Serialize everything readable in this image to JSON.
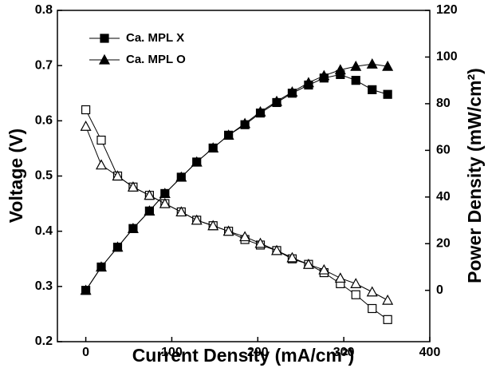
{
  "chart_data": {
    "type": "line",
    "x_label": "Current Density (mA/cm²)",
    "y_label": "Voltage (V)",
    "y2_label": "Power Density (mW/cm²)",
    "x": [
      0,
      18,
      37,
      55,
      74,
      92,
      111,
      129,
      148,
      166,
      185,
      203,
      222,
      240,
      259,
      277,
      296,
      314,
      333,
      351
    ],
    "xlim": [
      -33,
      400
    ],
    "xticks": [
      0,
      100,
      200,
      300,
      400
    ],
    "ylim": [
      0.2,
      0.8
    ],
    "yticks": [
      0.2,
      0.3,
      0.4,
      0.5,
      0.6,
      0.7,
      0.8
    ],
    "y2lim": [
      -22,
      120
    ],
    "y2ticks": [
      0,
      20,
      40,
      60,
      80,
      100,
      120
    ],
    "legend": "upper left",
    "series": [
      {
        "marker": "square",
        "filled": false,
        "axis": "y",
        "color": "#000000",
        "values": [
          0.62,
          0.565,
          0.5,
          0.48,
          0.465,
          0.45,
          0.435,
          0.42,
          0.41,
          0.4,
          0.385,
          0.375,
          0.365,
          0.35,
          0.34,
          0.325,
          0.305,
          0.285,
          0.26,
          0.24
        ]
      },
      {
        "marker": "triangle",
        "filled": false,
        "axis": "y",
        "color": "#000000",
        "values": [
          0.59,
          0.52,
          0.5,
          0.48,
          0.465,
          0.45,
          0.435,
          0.42,
          0.41,
          0.4,
          0.39,
          0.378,
          0.365,
          0.352,
          0.34,
          0.33,
          0.315,
          0.305,
          0.29,
          0.275
        ]
      },
      {
        "name": "Ca. MPL X",
        "marker": "square",
        "filled": true,
        "axis": "y2",
        "color": "#000000",
        "values": [
          0,
          10,
          18.5,
          26.5,
          34,
          41.5,
          48.5,
          55,
          61,
          66.5,
          71,
          76,
          80.5,
          84.5,
          88,
          91,
          92.5,
          90,
          86,
          84
        ]
      },
      {
        "name": "Ca. MPL O",
        "marker": "triangle",
        "filled": true,
        "axis": "y2",
        "color": "#000000",
        "values": [
          0,
          10,
          18.5,
          26.5,
          34,
          41.5,
          48.5,
          55,
          61,
          66.5,
          71.5,
          76.5,
          81,
          85,
          89,
          92,
          94.5,
          96,
          97,
          96
        ]
      }
    ]
  }
}
